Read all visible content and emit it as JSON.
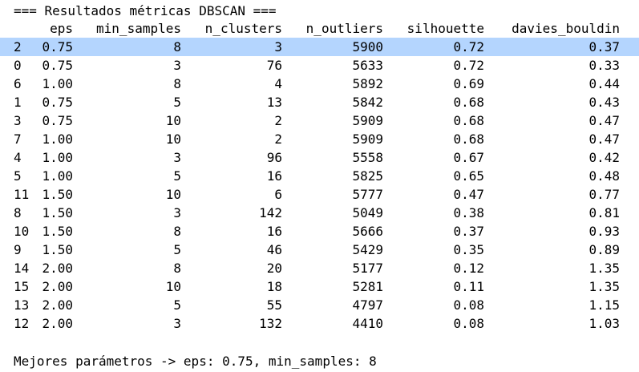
{
  "title": "=== Resultados métricas DBSCAN ===",
  "columns": {
    "eps": "eps",
    "min_samples": "min_samples",
    "n_clusters": "n_clusters",
    "n_outliers": "n_outliers",
    "silhouette": "silhouette",
    "davies_bouldin": "davies_bouldin"
  },
  "rows": [
    {
      "idx": "2",
      "eps": "0.75",
      "min_samples": "8",
      "n_clusters": "3",
      "n_outliers": "5900",
      "silhouette": "0.72",
      "davies_bouldin": "0.37"
    },
    {
      "idx": "0",
      "eps": "0.75",
      "min_samples": "3",
      "n_clusters": "76",
      "n_outliers": "5633",
      "silhouette": "0.72",
      "davies_bouldin": "0.33"
    },
    {
      "idx": "6",
      "eps": "1.00",
      "min_samples": "8",
      "n_clusters": "4",
      "n_outliers": "5892",
      "silhouette": "0.69",
      "davies_bouldin": "0.44"
    },
    {
      "idx": "1",
      "eps": "0.75",
      "min_samples": "5",
      "n_clusters": "13",
      "n_outliers": "5842",
      "silhouette": "0.68",
      "davies_bouldin": "0.43"
    },
    {
      "idx": "3",
      "eps": "0.75",
      "min_samples": "10",
      "n_clusters": "2",
      "n_outliers": "5909",
      "silhouette": "0.68",
      "davies_bouldin": "0.47"
    },
    {
      "idx": "7",
      "eps": "1.00",
      "min_samples": "10",
      "n_clusters": "2",
      "n_outliers": "5909",
      "silhouette": "0.68",
      "davies_bouldin": "0.47"
    },
    {
      "idx": "4",
      "eps": "1.00",
      "min_samples": "3",
      "n_clusters": "96",
      "n_outliers": "5558",
      "silhouette": "0.67",
      "davies_bouldin": "0.42"
    },
    {
      "idx": "5",
      "eps": "1.00",
      "min_samples": "5",
      "n_clusters": "16",
      "n_outliers": "5825",
      "silhouette": "0.65",
      "davies_bouldin": "0.48"
    },
    {
      "idx": "11",
      "eps": "1.50",
      "min_samples": "10",
      "n_clusters": "6",
      "n_outliers": "5777",
      "silhouette": "0.47",
      "davies_bouldin": "0.77"
    },
    {
      "idx": "8",
      "eps": "1.50",
      "min_samples": "3",
      "n_clusters": "142",
      "n_outliers": "5049",
      "silhouette": "0.38",
      "davies_bouldin": "0.81"
    },
    {
      "idx": "10",
      "eps": "1.50",
      "min_samples": "8",
      "n_clusters": "16",
      "n_outliers": "5666",
      "silhouette": "0.37",
      "davies_bouldin": "0.93"
    },
    {
      "idx": "9",
      "eps": "1.50",
      "min_samples": "5",
      "n_clusters": "46",
      "n_outliers": "5429",
      "silhouette": "0.35",
      "davies_bouldin": "0.89"
    },
    {
      "idx": "14",
      "eps": "2.00",
      "min_samples": "8",
      "n_clusters": "20",
      "n_outliers": "5177",
      "silhouette": "0.12",
      "davies_bouldin": "1.35"
    },
    {
      "idx": "15",
      "eps": "2.00",
      "min_samples": "10",
      "n_clusters": "18",
      "n_outliers": "5281",
      "silhouette": "0.11",
      "davies_bouldin": "1.35"
    },
    {
      "idx": "13",
      "eps": "2.00",
      "min_samples": "5",
      "n_clusters": "55",
      "n_outliers": "4797",
      "silhouette": "0.08",
      "davies_bouldin": "1.15"
    },
    {
      "idx": "12",
      "eps": "2.00",
      "min_samples": "3",
      "n_clusters": "132",
      "n_outliers": "4410",
      "silhouette": "0.08",
      "davies_bouldin": "1.03"
    }
  ],
  "selected_row": 0,
  "colors": {
    "selection": "#b4d5fe",
    "text": "#000000",
    "background": "#ffffff"
  },
  "footer": "Mejores parámetros -> eps: 0.75, min_samples: 8"
}
